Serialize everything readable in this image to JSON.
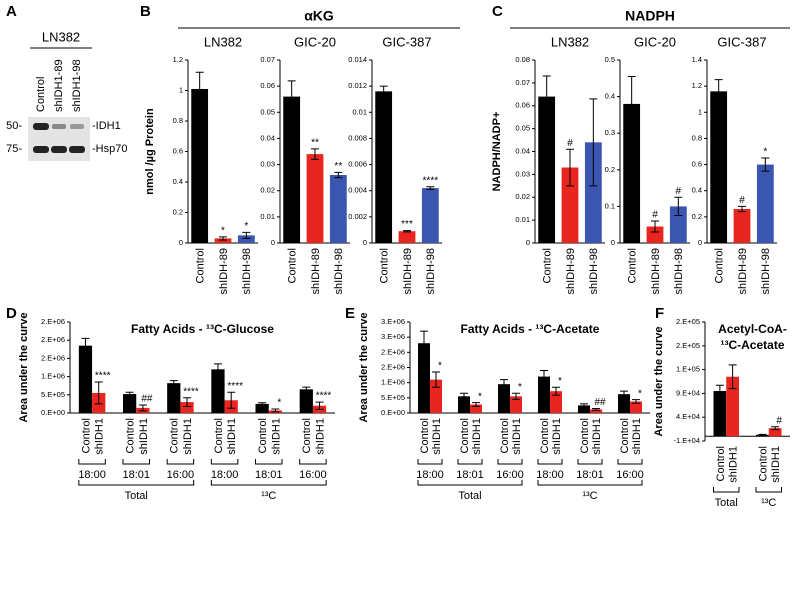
{
  "panels": [
    {
      "letter": "A"
    },
    {
      "letter": "B",
      "title": "αKG"
    },
    {
      "letter": "C",
      "title": "NADPH"
    },
    {
      "letter": "D"
    },
    {
      "letter": "E"
    },
    {
      "letter": "F"
    }
  ],
  "blot": {
    "title": "LN382",
    "lanes": [
      "Control",
      "shIDH1-89",
      "shIDH1-98"
    ],
    "markers": [
      "50-",
      "75-"
    ],
    "bands": [
      "-IDH1",
      "-Hsp70"
    ]
  },
  "chart_data": [
    {
      "type": "bar",
      "subtitle": "LN382",
      "ylabel": "nmol /µg Protein",
      "categories": [
        "Control",
        "shIDH-89",
        "shIDH-98"
      ],
      "values": [
        1.01,
        0.03,
        0.05
      ],
      "errors": [
        0.11,
        0.01,
        0.02
      ],
      "colors": [
        "#000000",
        "#e8251f",
        "#3a56b0"
      ],
      "annotations": [
        null,
        "*",
        "*"
      ],
      "ylim": [
        0,
        1.2
      ],
      "yticks": [
        0,
        0.2,
        0.4,
        0.6,
        0.8,
        1,
        1.2
      ]
    },
    {
      "type": "bar",
      "subtitle": "GIC-20",
      "categories": [
        "Control",
        "shIDH-89",
        "shIDH-98"
      ],
      "values": [
        0.056,
        0.034,
        0.026
      ],
      "errors": [
        0.006,
        0.002,
        0.001
      ],
      "colors": [
        "#000000",
        "#e8251f",
        "#3a56b0"
      ],
      "annotations": [
        null,
        "**",
        "**"
      ],
      "ylim": [
        0,
        0.07
      ],
      "yticks": [
        0,
        0.01,
        0.02,
        0.03,
        0.04,
        0.05,
        0.06,
        0.07
      ]
    },
    {
      "type": "bar",
      "subtitle": "GIC-387",
      "categories": [
        "Control",
        "shIDH-89",
        "shIDH-98"
      ],
      "values": [
        0.0116,
        0.0009,
        0.0042
      ],
      "errors": [
        0.0004,
        5e-05,
        0.0001
      ],
      "colors": [
        "#000000",
        "#e8251f",
        "#3a56b0"
      ],
      "annotations": [
        null,
        "***",
        "****"
      ],
      "ylim": [
        0,
        0.014
      ],
      "yticks": [
        0,
        0.002,
        0.004,
        0.006,
        0.008,
        0.01,
        0.012,
        0.014
      ]
    },
    {
      "type": "bar",
      "subtitle": "LN382",
      "ylabel": "NADPH/NADP+",
      "categories": [
        "Control",
        "shIDH-89",
        "shIDH-98"
      ],
      "values": [
        0.064,
        0.033,
        0.044
      ],
      "errors": [
        0.009,
        0.008,
        0.019
      ],
      "colors": [
        "#000000",
        "#e8251f",
        "#3a56b0"
      ],
      "annotations": [
        null,
        "#",
        null
      ],
      "ylim": [
        0,
        0.08
      ],
      "yticks": [
        0,
        0.01,
        0.02,
        0.03,
        0.04,
        0.05,
        0.06,
        0.07,
        0.08
      ]
    },
    {
      "type": "bar",
      "subtitle": "GIC-20",
      "categories": [
        "Control",
        "shIDH-89",
        "shIDH-98"
      ],
      "values": [
        0.38,
        0.045,
        0.1
      ],
      "errors": [
        0.075,
        0.015,
        0.025
      ],
      "colors": [
        "#000000",
        "#e8251f",
        "#3a56b0"
      ],
      "annotations": [
        null,
        "#",
        "#"
      ],
      "ylim": [
        0,
        0.5
      ],
      "yticks": [
        0,
        0.1,
        0.2,
        0.3,
        0.4,
        0.5
      ]
    },
    {
      "type": "bar",
      "subtitle": "GIC-387",
      "categories": [
        "Control",
        "shIDH-89",
        "shIDH-98"
      ],
      "values": [
        1.16,
        0.26,
        0.6
      ],
      "errors": [
        0.09,
        0.02,
        0.05
      ],
      "colors": [
        "#000000",
        "#e8251f",
        "#3a56b0"
      ],
      "annotations": [
        null,
        "#",
        "*"
      ],
      "ylim": [
        0,
        1.4
      ],
      "yticks": [
        0,
        0.2,
        0.4,
        0.6,
        0.8,
        1,
        1.2,
        1.4
      ]
    },
    {
      "type": "bar",
      "title": [
        "Fatty Acids - ¹³C-Glucose"
      ],
      "ylabel": "Area under the curve",
      "categories": [
        "18:00",
        "18:01",
        "16:00",
        "18:00",
        "18:01",
        "16:00"
      ],
      "groups": [
        "Total",
        "¹³C"
      ],
      "series": [
        {
          "name": "Control",
          "color": "#000000",
          "values": [
            1850000,
            520000,
            820000,
            1200000,
            250000,
            650000
          ],
          "errors": [
            200000,
            50000,
            70000,
            150000,
            30000,
            60000
          ]
        },
        {
          "name": "shIDH1",
          "color": "#e8251f",
          "values": [
            550000,
            140000,
            300000,
            350000,
            70000,
            200000
          ],
          "errors": [
            300000,
            80000,
            120000,
            220000,
            40000,
            100000
          ],
          "annotations": [
            "****",
            "##",
            "****",
            "****",
            "*",
            "****"
          ]
        }
      ],
      "ylim": [
        0,
        2500000
      ],
      "yticks": [
        {
          "value": 0,
          "label": "0.E+00"
        },
        {
          "value": 500000,
          "label": "5.E+05"
        },
        {
          "value": 1000000,
          "label": "1.E+06"
        },
        {
          "value": 1500000,
          "label": "2.E+06"
        },
        {
          "value": 2000000,
          "label": "2.E+06"
        },
        {
          "value": 2500000,
          "label": "2.E+06"
        }
      ]
    },
    {
      "type": "bar",
      "title": [
        "Fatty Acids - ¹³C-Acetate"
      ],
      "ylabel": "Area under the curve",
      "categories": [
        "18:00",
        "18:01",
        "16:00",
        "18:00",
        "18:01",
        "16:00"
      ],
      "groups": [
        "Total",
        "¹³C"
      ],
      "series": [
        {
          "name": "Control",
          "color": "#000000",
          "values": [
            2300000,
            550000,
            950000,
            1200000,
            250000,
            620000
          ],
          "errors": [
            400000,
            100000,
            150000,
            200000,
            50000,
            100000
          ]
        },
        {
          "name": "shIDH1",
          "color": "#e8251f",
          "values": [
            1100000,
            280000,
            550000,
            720000,
            120000,
            380000
          ],
          "errors": [
            250000,
            60000,
            100000,
            130000,
            30000,
            60000
          ],
          "annotations": [
            "*",
            "*",
            "*",
            "*",
            "##",
            "*"
          ]
        }
      ],
      "ylim": [
        0,
        3000000
      ],
      "yticks": [
        {
          "value": 0,
          "label": "0.E+00"
        },
        {
          "value": 500000,
          "label": "5.E+05"
        },
        {
          "value": 1000000,
          "label": "1.E+06"
        },
        {
          "value": 1500000,
          "label": "2.E+06"
        },
        {
          "value": 2000000,
          "label": "2.E+06"
        },
        {
          "value": 2500000,
          "label": "3.E+06"
        },
        {
          "value": 3000000,
          "label": "3.E+06"
        }
      ]
    },
    {
      "type": "bar",
      "title": [
        "Acetyl-CoA-",
        "¹³C-Acetate"
      ],
      "ylabel": "Area under the curve",
      "categories": [
        "Total",
        "¹³C"
      ],
      "series": [
        {
          "name": "Control",
          "color": "#000000",
          "values": [
            95000,
            3000
          ],
          "errors": [
            12000,
            1000
          ]
        },
        {
          "name": "shIDH1",
          "color": "#e8251f",
          "values": [
            125000,
            17000
          ],
          "errors": [
            25000,
            3000
          ],
          "annotations": [
            null,
            "#"
          ]
        }
      ],
      "ylim": [
        -10000,
        240000
      ],
      "yticks": [
        {
          "value": -10000,
          "label": "-1.E+04"
        },
        {
          "value": 40000,
          "label": "4.E+04"
        },
        {
          "value": 90000,
          "label": "9.E+04"
        },
        {
          "value": 140000,
          "label": "1.E+05"
        },
        {
          "value": 190000,
          "label": "2.E+05"
        },
        {
          "value": 240000,
          "label": "2.E+05"
        }
      ]
    }
  ]
}
